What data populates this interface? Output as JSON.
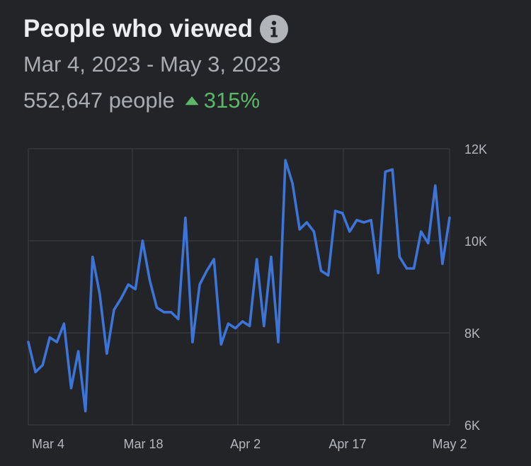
{
  "header": {
    "title": "People who viewed",
    "info_icon": "info-icon",
    "date_range": "Mar 4, 2023 - May 3, 2023",
    "metric_value": "552,647 people",
    "change_icon": "triangle-up-icon",
    "change_value": "315%"
  },
  "colors": {
    "background": "#232427",
    "line": "#3d74d8",
    "gridline": "#3b3c40",
    "positive": "#5ab866",
    "muted_text": "#a9acb1"
  },
  "chart_data": {
    "type": "line",
    "title": "",
    "xlabel": "",
    "ylabel": "",
    "ylim": [
      6000,
      12000
    ],
    "yticks": [
      6000,
      8000,
      10000,
      12000
    ],
    "ytick_labels": [
      "6K",
      "8K",
      "10K",
      "12K"
    ],
    "y_axis_position": "right",
    "grid": true,
    "x_tick_labels": [
      "Mar 4",
      "Mar 18",
      "Apr 2",
      "Apr 17",
      "May 2"
    ],
    "x_tick_dates": [
      "2023-03-04",
      "2023-03-18",
      "2023-04-02",
      "2023-04-17",
      "2023-05-02"
    ],
    "series": [
      {
        "values": [
          7800,
          7150,
          7300,
          7900,
          7800,
          8200,
          6800,
          7600,
          6300,
          9650,
          8850,
          7550,
          8500,
          8750,
          9050,
          8950,
          10000,
          9150,
          8550,
          8450,
          8450,
          8300,
          10500,
          7800,
          9050,
          9350,
          9600,
          7750,
          8200,
          8100,
          8250,
          8150,
          9600,
          8150,
          9650,
          7800,
          11750,
          11250,
          10250,
          10400,
          10200,
          9350,
          9250,
          10650,
          10600,
          10200,
          10450,
          10400,
          10450,
          9300,
          11500,
          11550,
          9650,
          9400,
          9400,
          10200,
          9950,
          11200,
          9500,
          10500
        ]
      }
    ]
  }
}
